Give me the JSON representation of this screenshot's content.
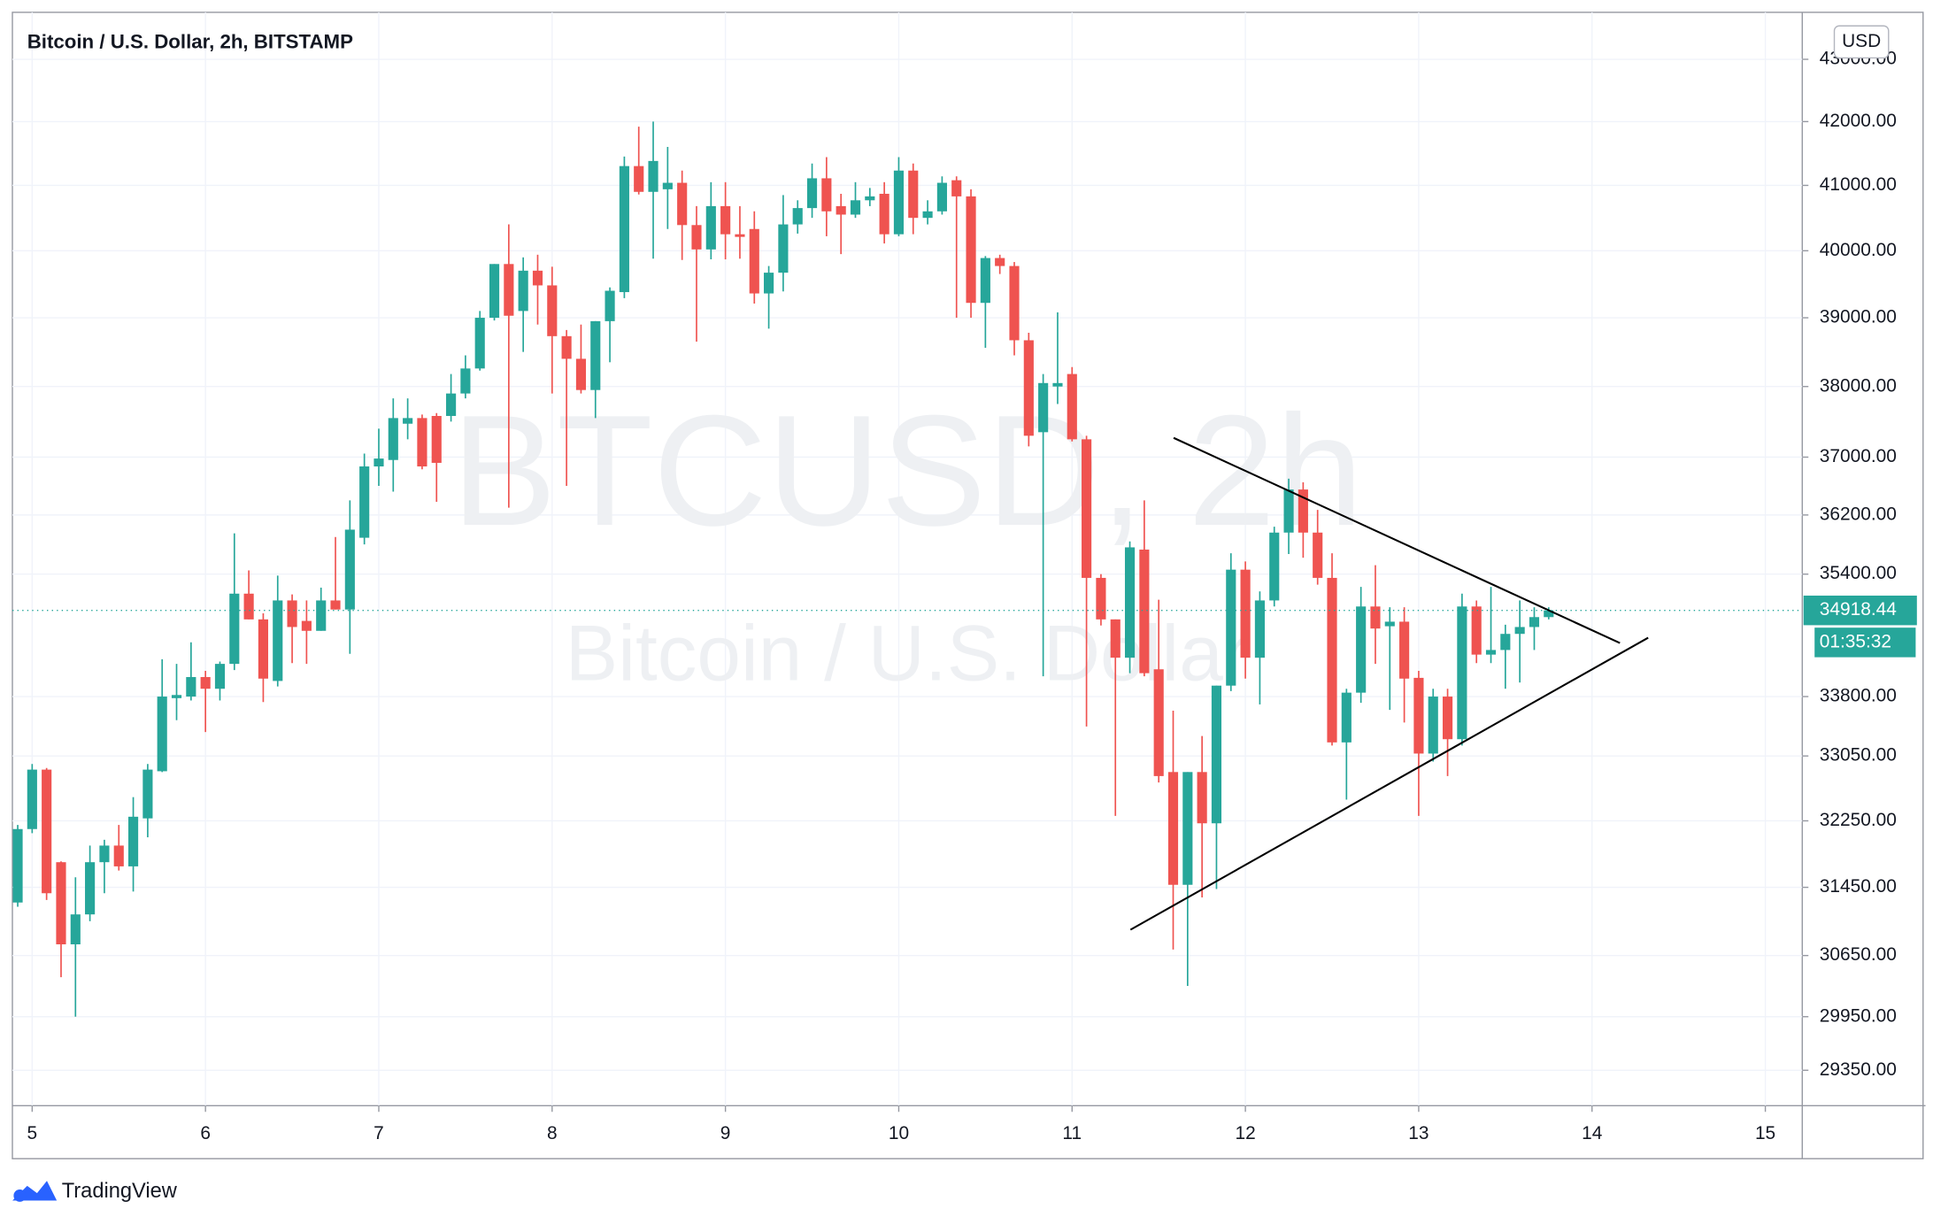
{
  "chart_data": {
    "type": "candlestick",
    "title": "Bitcoin / U.S. Dollar, 2h, BITSTAMP",
    "watermark": "BTCUSD, 2h",
    "watermark_subtitle": "Bitcoin / U.S. Dollar",
    "currency": "USD",
    "up_color": "#26a69a",
    "down_color": "#ef5350",
    "log_scale": true,
    "grid": true,
    "x": [
      4.9167,
      5,
      5.0833,
      5.1667,
      5.25,
      5.3333,
      5.4167,
      5.5,
      5.5833,
      5.6667,
      5.75,
      5.8333,
      5.9167,
      6,
      6.0833,
      6.1667,
      6.25,
      6.3333,
      6.4167,
      6.5,
      6.5833,
      6.6667,
      6.75,
      6.8333,
      6.9167,
      7,
      7.0833,
      7.1667,
      7.25,
      7.3333,
      7.4167,
      7.5,
      7.5833,
      7.6667,
      7.75,
      7.8333,
      7.9167,
      8,
      8.0833,
      8.1667,
      8.25,
      8.3333,
      8.4167,
      8.5,
      8.5833,
      8.6667,
      8.75,
      8.8333,
      8.9167,
      9,
      9.0833,
      9.1667,
      9.25,
      9.3333,
      9.4167,
      9.5,
      9.5833,
      9.6667,
      9.75,
      9.8333,
      9.9167,
      10,
      10.0833,
      10.1667,
      10.25,
      10.3333,
      10.4167,
      10.5,
      10.5833,
      10.6667,
      10.75,
      10.8333,
      10.9167,
      11,
      11.0833,
      11.1667,
      11.25,
      11.3333,
      11.4167,
      11.5,
      11.5833,
      11.6667,
      11.75,
      11.8333,
      11.9167,
      12,
      12.0833,
      12.1667,
      12.25,
      12.3333,
      12.4167,
      12.5,
      12.5833,
      12.6667,
      12.75,
      12.8333,
      12.9167,
      13,
      13.0833,
      13.1667,
      13.25,
      13.3333,
      13.4167,
      13.5,
      13.5833,
      13.6667,
      13.75
    ],
    "open": [
      31270,
      32150,
      32880,
      31750,
      30780,
      31130,
      31750,
      31950,
      31700,
      32280,
      32860,
      33780,
      33800,
      34050,
      33900,
      34220,
      35140,
      34800,
      34000,
      35050,
      34780,
      34650,
      35050,
      34930,
      35890,
      36870,
      36960,
      37470,
      37550,
      37580,
      37580,
      37900,
      38260,
      39000,
      39800,
      39100,
      39700,
      39480,
      38730,
      38400,
      37950,
      38950,
      39380,
      41300,
      40900,
      40940,
      41040,
      40390,
      40020,
      40680,
      40250,
      40330,
      39360,
      39670,
      40400,
      40650,
      41110,
      40680,
      40550,
      40770,
      40870,
      40250,
      41230,
      40500,
      40600,
      41080,
      40830,
      39220,
      39890,
      39770,
      38670,
      37350,
      38000,
      38180,
      37250,
      35350,
      34800,
      34300,
      35730,
      34150,
      32850,
      31480,
      32850,
      32220,
      33940,
      35460,
      34300,
      35050,
      35960,
      36550,
      35960,
      35350,
      33220,
      33850,
      34970,
      34710,
      34770,
      34040,
      33080,
      33800,
      33260,
      34970,
      34340,
      34400,
      34610,
      34700,
      34830
    ],
    "high": [
      32200,
      32950,
      32900,
      31760,
      31570,
      31950,
      32020,
      32200,
      32540,
      32950,
      34280,
      34220,
      34500,
      34130,
      34250,
      35950,
      35450,
      34880,
      35380,
      35130,
      35050,
      35220,
      35900,
      36400,
      37050,
      37400,
      37830,
      37830,
      37600,
      37620,
      38180,
      38450,
      39100,
      39800,
      40400,
      39900,
      39940,
      39760,
      38820,
      38900,
      38950,
      39450,
      41450,
      41920,
      42000,
      41600,
      41230,
      40680,
      41050,
      41050,
      40680,
      40600,
      39770,
      40850,
      40770,
      41340,
      41440,
      40870,
      41050,
      40960,
      41050,
      41440,
      41340,
      40770,
      41140,
      41140,
      40940,
      39920,
      39940,
      39830,
      38780,
      38180,
      39080,
      38280,
      37300,
      35400,
      34800,
      35840,
      36400,
      35060,
      33620,
      32850,
      33300,
      33940,
      35680,
      35570,
      35170,
      36040,
      36700,
      36650,
      36270,
      35680,
      33900,
      35230,
      35520,
      34960,
      34960,
      34130,
      33900,
      33900,
      35140,
      35050,
      35230,
      34730,
      35050,
      34960,
      34960
    ],
    "low": [
      31220,
      32100,
      31300,
      30400,
      29950,
      31050,
      31380,
      31650,
      31400,
      32050,
      32850,
      33500,
      33750,
      33350,
      33750,
      34140,
      34800,
      33730,
      33930,
      34230,
      34220,
      34650,
      34930,
      34350,
      35800,
      36600,
      36520,
      37250,
      36830,
      36380,
      37500,
      37830,
      38230,
      38960,
      36300,
      38500,
      38900,
      37900,
      36600,
      37900,
      37550,
      38350,
      39290,
      40860,
      39880,
      40330,
      39860,
      38650,
      39870,
      39870,
      39880,
      39210,
      38840,
      39390,
      40260,
      40500,
      40220,
      39950,
      40500,
      40680,
      40110,
      40220,
      40250,
      40400,
      40550,
      39000,
      39000,
      38560,
      39650,
      38450,
      37150,
      34060,
      37750,
      37220,
      33420,
      34720,
      32310,
      34100,
      34060,
      32720,
      30720,
      30300,
      31330,
      31430,
      33870,
      34030,
      33700,
      34970,
      35670,
      35620,
      35260,
      33180,
      32510,
      33720,
      34220,
      33630,
      33470,
      32310,
      32980,
      32800,
      33180,
      34230,
      34230,
      33900,
      33980,
      34400,
      34800
    ],
    "close": [
      32150,
      32880,
      31380,
      30780,
      31130,
      31750,
      31950,
      31700,
      32300,
      32880,
      33800,
      33820,
      34050,
      33900,
      34220,
      35140,
      34800,
      34030,
      35050,
      34700,
      34650,
      35050,
      34930,
      36000,
      36870,
      36980,
      37550,
      37550,
      36870,
      36920,
      37900,
      38260,
      39000,
      39800,
      39030,
      39700,
      39480,
      38730,
      38400,
      37950,
      38950,
      39400,
      41300,
      40900,
      41380,
      41040,
      40390,
      40020,
      40680,
      40250,
      40210,
      39360,
      39670,
      40400,
      40650,
      41110,
      40600,
      40550,
      40770,
      40830,
      40250,
      41230,
      40500,
      40600,
      41040,
      40830,
      39220,
      39890,
      39770,
      38670,
      37300,
      38050,
      38050,
      37250,
      35350,
      34800,
      34300,
      35760,
      34100,
      32800,
      31480,
      32850,
      32220,
      33940,
      35460,
      34300,
      35050,
      35960,
      36550,
      35960,
      35350,
      33220,
      33850,
      34970,
      34680,
      34770,
      34030,
      33080,
      33800,
      33260,
      34970,
      34340,
      34400,
      34610,
      34700,
      34830,
      34918.44
    ],
    "last_price": 34918.44,
    "countdown": "01:35:32",
    "xlim": [
      4.886,
      15.213
    ],
    "xticks": [
      5,
      6,
      7,
      8,
      9,
      10,
      11,
      12,
      13,
      14,
      15
    ],
    "ylim": [
      28960,
      43770
    ],
    "yticks": [
      {
        "value": 29350,
        "label": "29350.00"
      },
      {
        "value": 29950,
        "label": "29950.00"
      },
      {
        "value": 30650,
        "label": "30650.00"
      },
      {
        "value": 31450,
        "label": "31450.00"
      },
      {
        "value": 32250,
        "label": "32250.00"
      },
      {
        "value": 33050,
        "label": "33050.00"
      },
      {
        "value": 33800,
        "label": "33800.00"
      },
      {
        "value": 35400,
        "label": "35400.00"
      },
      {
        "value": 36200,
        "label": "36200.00"
      },
      {
        "value": 37000,
        "label": "37000.00"
      },
      {
        "value": 38000,
        "label": "38000.00"
      },
      {
        "value": 39000,
        "label": "39000.00"
      },
      {
        "value": 40000,
        "label": "40000.00"
      },
      {
        "value": 41000,
        "label": "41000.00"
      },
      {
        "value": 42000,
        "label": "42000.00"
      },
      {
        "value": 43000,
        "label": "43000.00"
      }
    ],
    "trendlines": [
      {
        "color": "#000000",
        "x": [
          11.586,
          14.161
        ],
        "y": [
          37270,
          34490
        ]
      },
      {
        "color": "#000000",
        "x": [
          11.337,
          14.324
        ],
        "y": [
          30950,
          34560
        ]
      }
    ]
  },
  "brand": "TradingView"
}
